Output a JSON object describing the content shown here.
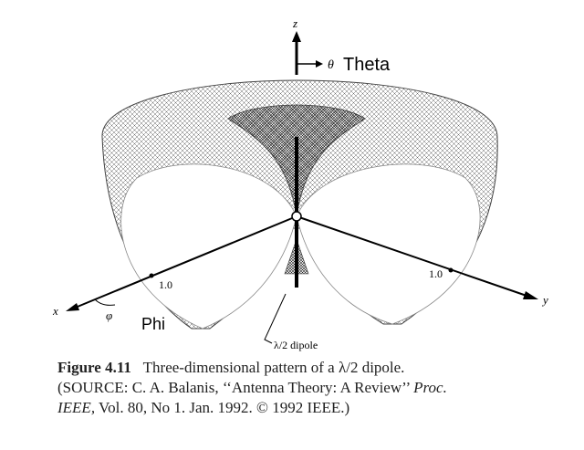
{
  "axes": {
    "z": "z",
    "x": "x",
    "y": "y",
    "theta": "θ",
    "phi": "φ",
    "x_mark": "1.0",
    "y_mark": "1.0"
  },
  "labels": {
    "theta": "Theta",
    "phi": "Phi",
    "dipole": "λ/2 dipole"
  },
  "caption": {
    "number": "Figure 4.11",
    "title": "Three-dimensional pattern of a λ/2 dipole.",
    "source_1": "(SOURCE: C. A. Balanis, ‘‘Antenna Theory: A Review’’",
    "source_1_italic": "Proc.",
    "source_2_italic": "IEEE,",
    "source_2": "Vol. 80, No 1. Jan. 1992. © 1992 IEEE.)"
  }
}
